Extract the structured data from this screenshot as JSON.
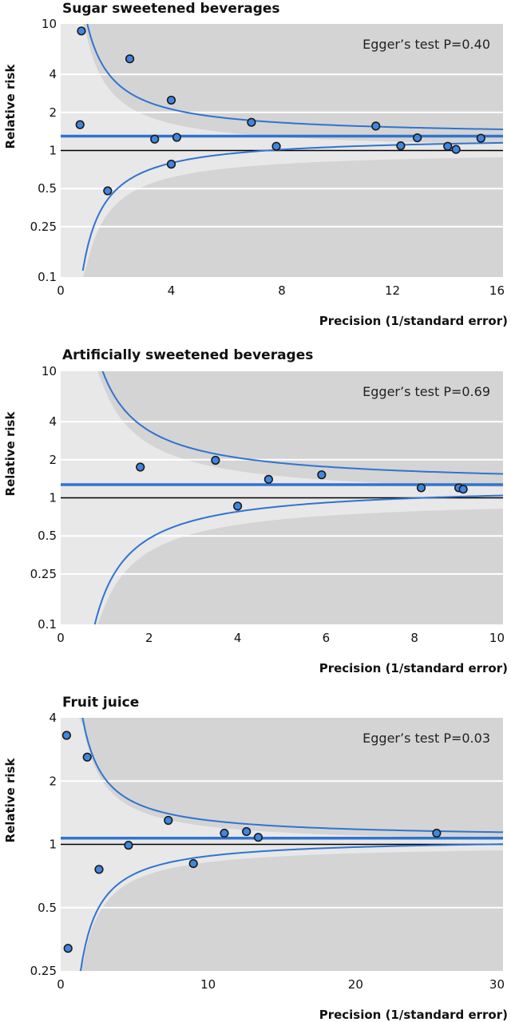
{
  "colors": {
    "panel_bg": "#e8e8e8",
    "shaded_region": "#d4d4d4",
    "gridline": "#ffffff",
    "reference_line": "#000000",
    "pooled_line": "#2f74d0",
    "funnel_line": "#2f74d0",
    "point_fill": "#3f86e0",
    "point_stroke": "#1a1a1a"
  },
  "chart_data": [
    {
      "type": "scatter",
      "title": "Sugar sweetened beverages",
      "xlabel": "Precision (1/standard error)",
      "ylabel": "Relative risk",
      "y_scale": "log",
      "xlim": [
        0,
        16
      ],
      "ylim": [
        0.1,
        10
      ],
      "x_ticks": [
        0,
        4,
        8,
        12,
        16
      ],
      "y_ticks": [
        0.1,
        0.25,
        0.5,
        1,
        2,
        4,
        10
      ],
      "grid": true,
      "annotation": "Egger’s test P=0.40",
      "pooled_rr": 1.3,
      "reference_rr": 1,
      "x": [
        0.75,
        0.7,
        1.7,
        2.5,
        3.4,
        4.0,
        4.2,
        4.0,
        6.9,
        7.8,
        11.4,
        12.3,
        12.9,
        14.0,
        14.3,
        15.2
      ],
      "y": [
        8.8,
        1.6,
        0.48,
        5.3,
        1.23,
        2.5,
        1.27,
        0.78,
        1.67,
        1.08,
        1.56,
        1.09,
        1.26,
        1.08,
        1.02,
        1.25
      ],
      "shaded": true
    },
    {
      "type": "scatter",
      "title": "Artificially sweetened beverages",
      "xlabel": "Precision (1/standard error)",
      "ylabel": "Relative risk",
      "y_scale": "log",
      "xlim": [
        0,
        10
      ],
      "ylim": [
        0.1,
        10
      ],
      "x_ticks": [
        0,
        2,
        4,
        6,
        8,
        10
      ],
      "y_ticks": [
        0.1,
        0.25,
        0.5,
        1,
        2,
        4,
        10
      ],
      "grid": true,
      "annotation": "Egger’s test P=0.69",
      "pooled_rr": 1.27,
      "reference_rr": 1,
      "x": [
        1.8,
        3.5,
        4.0,
        4.7,
        5.9,
        8.15,
        9.0,
        9.1
      ],
      "y": [
        1.75,
        1.98,
        0.86,
        1.4,
        1.52,
        1.2,
        1.2,
        1.17
      ],
      "shaded": true
    },
    {
      "type": "scatter",
      "title": "Fruit juice",
      "xlabel": "Precision (1/standard error)",
      "ylabel": "Relative risk",
      "y_scale": "log",
      "xlim": [
        0,
        30
      ],
      "ylim": [
        0.25,
        4
      ],
      "x_ticks": [
        0,
        10,
        20,
        30
      ],
      "y_ticks": [
        0.25,
        0.5,
        1,
        2,
        4
      ],
      "grid": true,
      "annotation": "Egger’s test P=0.03",
      "pooled_rr": 1.07,
      "reference_rr": 1,
      "x": [
        0.4,
        0.5,
        1.8,
        2.6,
        4.6,
        7.3,
        9.0,
        11.1,
        12.6,
        13.4,
        25.5
      ],
      "y": [
        3.3,
        0.32,
        2.6,
        0.76,
        0.99,
        1.3,
        0.81,
        1.13,
        1.15,
        1.08,
        1.13
      ],
      "shaded": true
    }
  ]
}
